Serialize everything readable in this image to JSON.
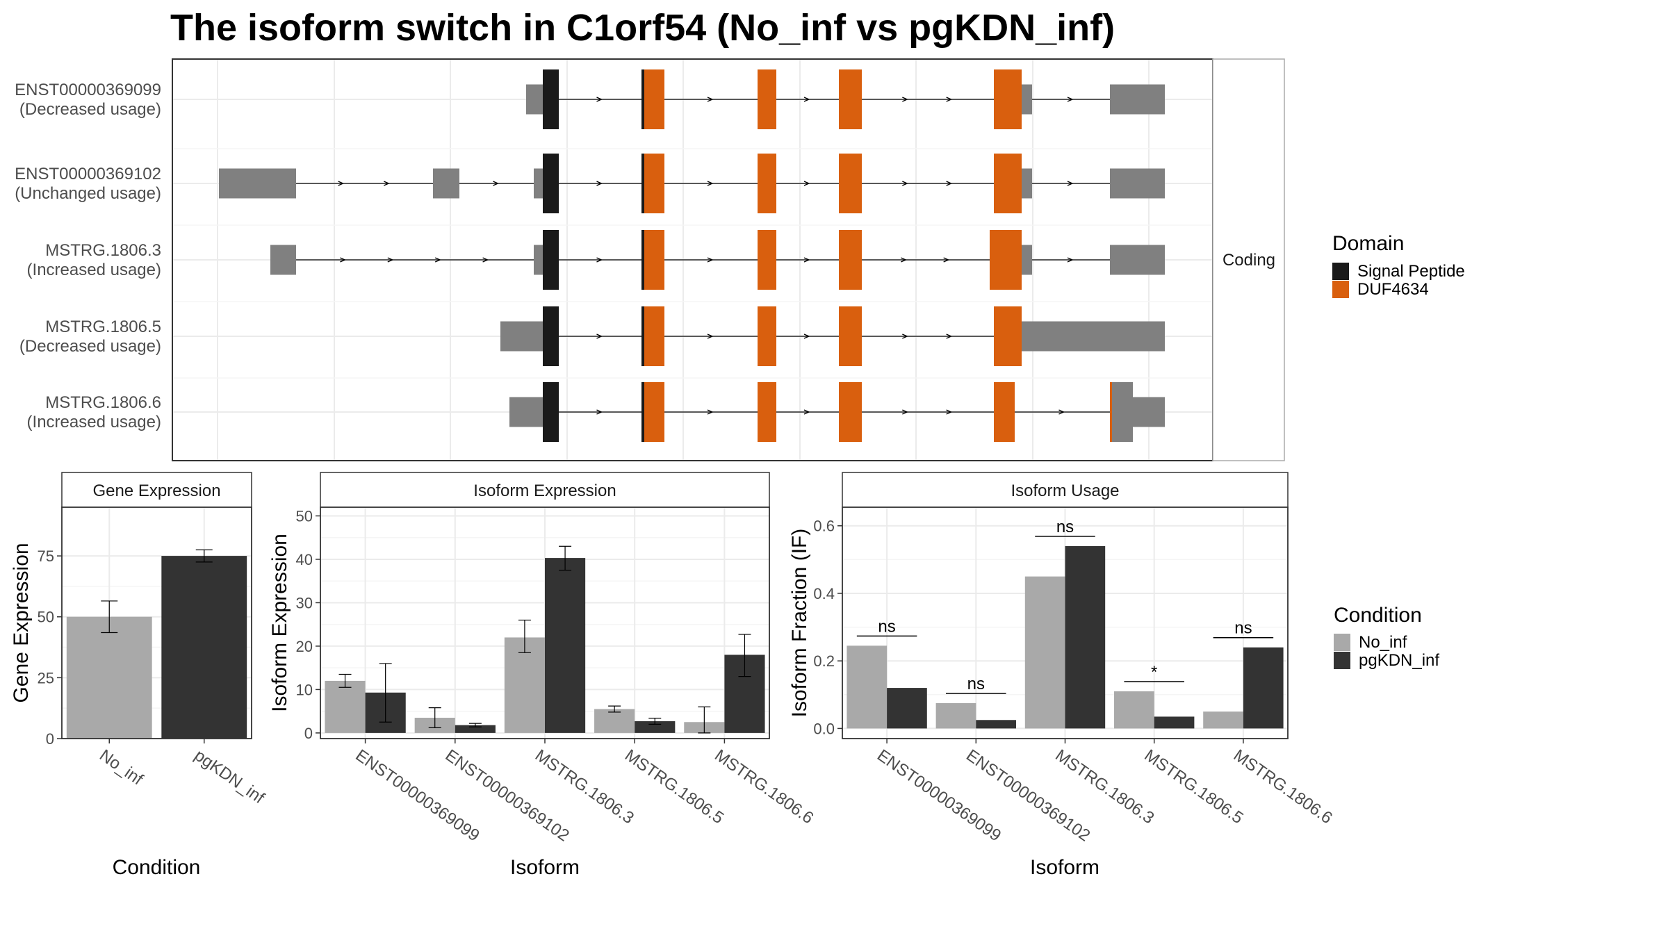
{
  "title": "The isoform switch in C1orf54 (No_inf vs pgKDN_inf)",
  "colors": {
    "signal_peptide": "#1a1a1a",
    "duf": "#d95f0e",
    "utr": "#808080",
    "no_inf": "#a9a9a9",
    "pgkdn_inf": "#333333",
    "grid": "#ebebeb",
    "strip_bg": "#ffffff",
    "panel_border": "#333333"
  },
  "structure": {
    "strip_label": "Coding",
    "tracks": [
      {
        "id": "ENST00000369099",
        "usage": "(Decreased usage)"
      },
      {
        "id": "ENST00000369102",
        "usage": "(Unchanged usage)"
      },
      {
        "id": "MSTRG.1806.3",
        "usage": "(Increased usage)"
      },
      {
        "id": "MSTRG.1806.5",
        "usage": "(Decreased usage)"
      },
      {
        "id": "MSTRG.1806.6",
        "usage": "(Increased usage)"
      }
    ]
  },
  "legend_domain": {
    "title": "Domain",
    "items": [
      {
        "label": "Signal Peptide",
        "color": "#1a1a1a"
      },
      {
        "label": "DUF4634",
        "color": "#d95f0e"
      }
    ]
  },
  "legend_condition": {
    "title": "Condition",
    "items": [
      {
        "label": "No_inf",
        "color": "#a9a9a9"
      },
      {
        "label": "pgKDN_inf",
        "color": "#333333"
      }
    ]
  },
  "chart_data": [
    {
      "type": "bar",
      "panel_title": "Gene Expression",
      "xlabel": "Condition",
      "ylabel": "Gene Expression",
      "categories": [
        "No_inf",
        "pgKDN_inf"
      ],
      "values": [
        50,
        75
      ],
      "error": [
        [
          43.5,
          56.5
        ],
        [
          72.5,
          77.5
        ]
      ],
      "ylim": [
        0,
        95
      ],
      "yticks": [
        0,
        25,
        50,
        75
      ]
    },
    {
      "type": "bar",
      "panel_title": "Isoform Expression",
      "xlabel": "Isoform",
      "ylabel": "Isoform Expression",
      "categories": [
        "ENST00000369099",
        "ENST00000369102",
        "MSTRG.1806.3",
        "MSTRG.1806.5",
        "MSTRG.1806.6"
      ],
      "series": [
        {
          "name": "No_inf",
          "values": [
            12,
            3.5,
            22,
            5.5,
            2.5
          ],
          "error": [
            [
              10.5,
              13.5
            ],
            [
              1.2,
              5.8
            ],
            [
              18.5,
              26
            ],
            [
              4.8,
              6.2
            ],
            [
              0,
              6
            ]
          ]
        },
        {
          "name": "pgKDN_inf",
          "values": [
            9.3,
            1.8,
            40.3,
            2.7,
            18
          ],
          "error": [
            [
              2.5,
              16
            ],
            [
              1.4,
              2.2
            ],
            [
              37.5,
              43
            ],
            [
              2,
              3.4
            ],
            [
              13,
              22.7
            ]
          ]
        }
      ],
      "ylim": [
        -1.3,
        52
      ],
      "yticks": [
        0,
        10,
        20,
        30,
        40,
        50
      ]
    },
    {
      "type": "bar",
      "panel_title": "Isoform Usage",
      "xlabel": "Isoform",
      "ylabel": "Isoform Fraction (IF)",
      "categories": [
        "ENST00000369099",
        "ENST00000369102",
        "MSTRG.1806.3",
        "MSTRG.1806.5",
        "MSTRG.1806.6"
      ],
      "series": [
        {
          "name": "No_inf",
          "values": [
            0.245,
            0.075,
            0.45,
            0.11,
            0.05
          ]
        },
        {
          "name": "pgKDN_inf",
          "values": [
            0.12,
            0.025,
            0.54,
            0.035,
            0.24
          ]
        }
      ],
      "significance": [
        "ns",
        "ns",
        "ns",
        "*",
        "ns"
      ],
      "ylim": [
        -0.03,
        0.655
      ],
      "yticks": [
        "0.0",
        "0.2",
        "0.4",
        "0.6"
      ]
    }
  ]
}
